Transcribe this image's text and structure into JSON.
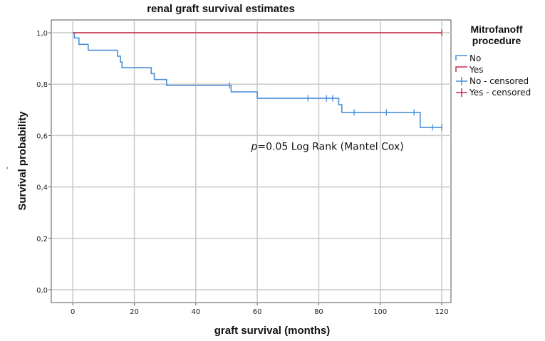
{
  "chart_data": {
    "type": "line",
    "title": "renal graft survival estimates",
    "xlabel": "graft survival (months)",
    "ylabel": "Survival probability",
    "ylabel_marker": "-",
    "xlim": [
      -7,
      123
    ],
    "ylim": [
      -0.05,
      1.05
    ],
    "x_ticks": [
      0,
      20,
      40,
      60,
      80,
      100,
      120
    ],
    "y_ticks": [
      0.0,
      0.2,
      0.4,
      0.6,
      0.8,
      1.0
    ],
    "y_tick_labels": [
      "0,0",
      "0,2",
      "0,4",
      "0,6",
      "0,8",
      "1,0"
    ],
    "x_tick_labels": [
      "0",
      "20",
      "40",
      "60",
      "80",
      "100",
      "120"
    ],
    "grid": true,
    "legend": {
      "title_lines": [
        "Mitrofanoff",
        "procedure"
      ],
      "placement": "right",
      "entries": [
        {
          "label": "No",
          "color": "#4a8fd8",
          "kind": "line"
        },
        {
          "label": "Yes",
          "color": "#c8284a",
          "kind": "line"
        },
        {
          "label": "No - censored",
          "color": "#4a8fd8",
          "kind": "censor"
        },
        {
          "label": "Yes - censored",
          "color": "#c8284a",
          "kind": "censor"
        }
      ]
    },
    "annotation": {
      "p": "p",
      "rest": "=0.05 Log Rank (Mantel Cox)",
      "x": 58,
      "y": 0.545
    },
    "series": [
      {
        "name": "No",
        "color": "#4a8fd8",
        "step_points": [
          [
            0,
            1.0
          ],
          [
            0.5,
            0.98
          ],
          [
            2,
            0.955
          ],
          [
            5,
            0.932
          ],
          [
            14.5,
            0.909
          ],
          [
            15.5,
            0.886
          ],
          [
            16,
            0.864
          ],
          [
            25.5,
            0.841
          ],
          [
            26.5,
            0.818
          ],
          [
            30.5,
            0.795
          ],
          [
            51.5,
            0.77
          ],
          [
            60,
            0.745
          ],
          [
            86.5,
            0.72
          ],
          [
            87.5,
            0.69
          ],
          [
            113,
            0.632
          ],
          [
            120,
            0.632
          ]
        ],
        "censored": [
          [
            51,
            0.795
          ],
          [
            76.5,
            0.745
          ],
          [
            82.5,
            0.745
          ],
          [
            84.5,
            0.745
          ],
          [
            91.5,
            0.69
          ],
          [
            102,
            0.69
          ],
          [
            111,
            0.69
          ],
          [
            117,
            0.632
          ],
          [
            120,
            0.632
          ]
        ]
      },
      {
        "name": "Yes",
        "color": "#c8284a",
        "step_points": [
          [
            0,
            1.0
          ],
          [
            120,
            1.0
          ]
        ],
        "censored": [
          [
            120,
            1.0
          ]
        ]
      }
    ]
  }
}
